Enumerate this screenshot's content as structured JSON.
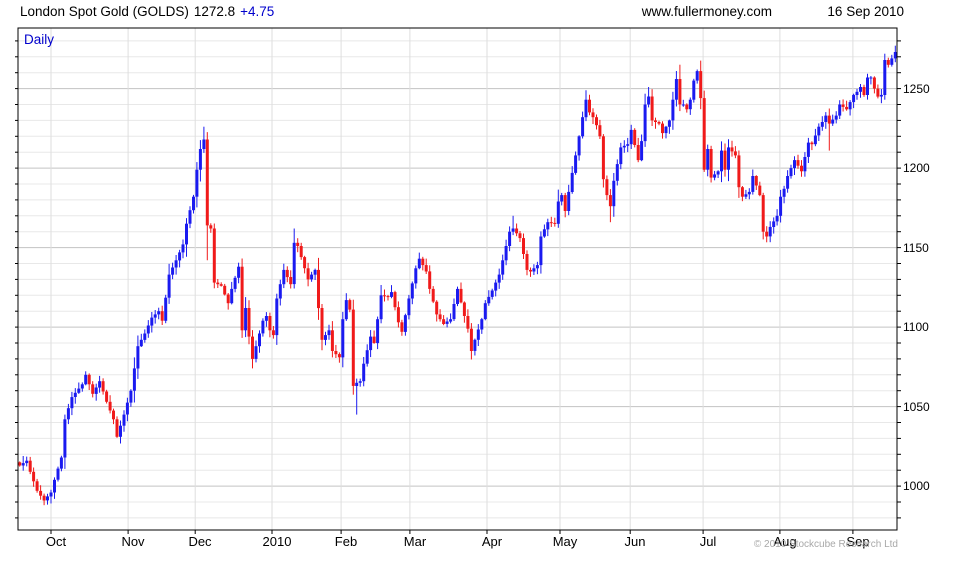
{
  "header": {
    "instrument": "London Spot Gold (GOLDS)",
    "price": "1272.8",
    "change": "+4.75",
    "website": "www.fullermoney.com",
    "date": "16 Sep 2010"
  },
  "chart": {
    "timeframe_label": "Daily",
    "copyright": "© 2010 Stockcube Research Ltd"
  },
  "chart_data": {
    "type": "candlestick",
    "title": "London Spot Gold (GOLDS)",
    "subtitle": "Daily",
    "last_price": 1272.8,
    "change": 4.75,
    "date": "16 Sep 2010",
    "grid": true,
    "legend_position": "none",
    "xlabel": "",
    "ylabel": "",
    "y_axis": {
      "ticks": [
        1000,
        1050,
        1100,
        1150,
        1200,
        1250
      ],
      "minor_step": 10,
      "range": [
        972.4,
        1288.1
      ],
      "side": "right"
    },
    "x_axis": {
      "months": [
        {
          "label": "Oct",
          "day": 9.5
        },
        {
          "label": "Nov",
          "day": 31.7
        },
        {
          "label": "Dec",
          "day": 51.0
        },
        {
          "label": "2010",
          "day": 73.1
        },
        {
          "label": "Feb",
          "day": 93.0
        },
        {
          "label": "Mar",
          "day": 112.8
        },
        {
          "label": "Apr",
          "day": 135.0
        },
        {
          "label": "May",
          "day": 156.0
        },
        {
          "label": "Jun",
          "day": 176.2
        },
        {
          "label": "Jul",
          "day": 197.2
        },
        {
          "label": "Aug",
          "day": 219.3
        },
        {
          "label": "Sep",
          "day": 240.3
        }
      ]
    },
    "series": {
      "name": "London Spot Gold close (estimated from chart)",
      "total_days": 253,
      "render_seed": 7,
      "close_waypoints": [
        [
          0,
          1013
        ],
        [
          2,
          1016
        ],
        [
          3,
          1009
        ],
        [
          5,
          997
        ],
        [
          7,
          991
        ],
        [
          9,
          996
        ],
        [
          10,
          1004
        ],
        [
          12,
          1018
        ],
        [
          13,
          1042
        ],
        [
          15,
          1056
        ],
        [
          18,
          1064
        ],
        [
          19,
          1070
        ],
        [
          21,
          1058
        ],
        [
          23,
          1066
        ],
        [
          25,
          1053
        ],
        [
          27,
          1042
        ],
        [
          28,
          1031
        ],
        [
          30,
          1045
        ],
        [
          32,
          1060
        ],
        [
          34,
          1088
        ],
        [
          36,
          1096
        ],
        [
          38,
          1106
        ],
        [
          40,
          1110
        ],
        [
          41,
          1104
        ],
        [
          43,
          1133
        ],
        [
          45,
          1142
        ],
        [
          47,
          1152
        ],
        [
          48,
          1165
        ],
        [
          50,
          1182
        ],
        [
          51,
          1199
        ],
        [
          52,
          1212
        ],
        [
          53,
          1218
        ],
        [
          54,
          1164
        ],
        [
          55,
          1162
        ],
        [
          56,
          1128
        ],
        [
          58,
          1126
        ],
        [
          60,
          1115
        ],
        [
          61,
          1124
        ],
        [
          63,
          1138
        ],
        [
          64,
          1098
        ],
        [
          65,
          1112
        ],
        [
          66,
          1094
        ],
        [
          67,
          1080
        ],
        [
          68,
          1088
        ],
        [
          70,
          1104
        ],
        [
          71,
          1107
        ],
        [
          72,
          1098
        ],
        [
          73,
          1095
        ],
        [
          74,
          1118
        ],
        [
          76,
          1136
        ],
        [
          78,
          1127
        ],
        [
          79,
          1153
        ],
        [
          80,
          1151
        ],
        [
          82,
          1137
        ],
        [
          83,
          1130
        ],
        [
          85,
          1136
        ],
        [
          86,
          1112
        ],
        [
          87,
          1092
        ],
        [
          89,
          1098
        ],
        [
          90,
          1085
        ],
        [
          92,
          1081
        ],
        [
          93,
          1105
        ],
        [
          94,
          1117
        ],
        [
          95,
          1111
        ],
        [
          96,
          1063
        ],
        [
          97,
          1065
        ],
        [
          98,
          1066
        ],
        [
          99,
          1077
        ],
        [
          101,
          1094
        ],
        [
          102,
          1090
        ],
        [
          104,
          1120
        ],
        [
          106,
          1119
        ],
        [
          107,
          1122
        ],
        [
          109,
          1103
        ],
        [
          110,
          1097
        ],
        [
          112,
          1118
        ],
        [
          114,
          1137
        ],
        [
          115,
          1143
        ],
        [
          117,
          1135
        ],
        [
          118,
          1124
        ],
        [
          120,
          1108
        ],
        [
          122,
          1102
        ],
        [
          124,
          1105
        ],
        [
          126,
          1124
        ],
        [
          128,
          1107
        ],
        [
          129,
          1099
        ],
        [
          130,
          1085
        ],
        [
          131,
          1092
        ],
        [
          133,
          1105
        ],
        [
          134,
          1115
        ],
        [
          136,
          1123
        ],
        [
          138,
          1133
        ],
        [
          140,
          1151
        ],
        [
          141,
          1160
        ],
        [
          142,
          1162
        ],
        [
          144,
          1156
        ],
        [
          146,
          1136
        ],
        [
          147,
          1135
        ],
        [
          149,
          1139
        ],
        [
          150,
          1157
        ],
        [
          152,
          1166
        ],
        [
          154,
          1165
        ],
        [
          155,
          1179
        ],
        [
          156,
          1183
        ],
        [
          157,
          1173
        ],
        [
          159,
          1197
        ],
        [
          160,
          1208
        ],
        [
          162,
          1232
        ],
        [
          163,
          1243
        ],
        [
          164,
          1235
        ],
        [
          165,
          1232
        ],
        [
          166,
          1227
        ],
        [
          167,
          1220
        ],
        [
          168,
          1193
        ],
        [
          169,
          1183
        ],
        [
          170,
          1176
        ],
        [
          171,
          1192
        ],
        [
          173,
          1213
        ],
        [
          175,
          1215
        ],
        [
          176,
          1224
        ],
        [
          178,
          1205
        ],
        [
          179,
          1217
        ],
        [
          180,
          1240
        ],
        [
          181,
          1245
        ],
        [
          182,
          1230
        ],
        [
          184,
          1228
        ],
        [
          185,
          1222
        ],
        [
          187,
          1230
        ],
        [
          189,
          1256
        ],
        [
          190,
          1240
        ],
        [
          191,
          1240
        ],
        [
          192,
          1237
        ],
        [
          193,
          1243
        ],
        [
          194,
          1255
        ],
        [
          195,
          1261
        ],
        [
          196,
          1244
        ],
        [
          197,
          1199
        ],
        [
          198,
          1212
        ],
        [
          199,
          1194
        ],
        [
          201,
          1198
        ],
        [
          202,
          1211
        ],
        [
          203,
          1199
        ],
        [
          204,
          1213
        ],
        [
          206,
          1208
        ],
        [
          207,
          1188
        ],
        [
          208,
          1182
        ],
        [
          210,
          1185
        ],
        [
          211,
          1195
        ],
        [
          212,
          1189
        ],
        [
          213,
          1183
        ],
        [
          214,
          1160
        ],
        [
          215,
          1157
        ],
        [
          216,
          1163
        ],
        [
          218,
          1170
        ],
        [
          219,
          1182
        ],
        [
          220,
          1187
        ],
        [
          221,
          1195
        ],
        [
          223,
          1205
        ],
        [
          225,
          1198
        ],
        [
          227,
          1216
        ],
        [
          228,
          1215
        ],
        [
          230,
          1226
        ],
        [
          231,
          1229
        ],
        [
          232,
          1233
        ],
        [
          233,
          1228
        ],
        [
          235,
          1233
        ],
        [
          236,
          1240
        ],
        [
          238,
          1237
        ],
        [
          240,
          1246
        ],
        [
          241,
          1248
        ],
        [
          242,
          1251
        ],
        [
          243,
          1246
        ],
        [
          244,
          1257
        ],
        [
          245,
          1257
        ],
        [
          246,
          1250
        ],
        [
          247,
          1245
        ],
        [
          248,
          1246
        ],
        [
          249,
          1268
        ],
        [
          250,
          1265
        ],
        [
          251,
          1269
        ],
        [
          252,
          1273
        ]
      ],
      "extremes": [
        [
          7,
          "L",
          988
        ],
        [
          19,
          "H",
          1072
        ],
        [
          53,
          "H",
          1226
        ],
        [
          54,
          "L",
          1142
        ],
        [
          67,
          "L",
          1074
        ],
        [
          79,
          "H",
          1162
        ],
        [
          97,
          "L",
          1045
        ],
        [
          130,
          "L",
          1082
        ],
        [
          142,
          "H",
          1170
        ],
        [
          163,
          "H",
          1249
        ],
        [
          170,
          "L",
          1166
        ],
        [
          181,
          "H",
          1251
        ],
        [
          190,
          "H",
          1265
        ],
        [
          195,
          "H",
          1262
        ],
        [
          215,
          "L",
          1155
        ],
        [
          233,
          "L",
          1211
        ],
        [
          244,
          "H",
          1259
        ],
        [
          252,
          "H",
          1277
        ]
      ]
    },
    "colors": {
      "up_candle": "#1a1af0",
      "down_candle": "#f01a1a",
      "grid_minor": "#e8e8e8",
      "grid_major": "#c3c3c3",
      "grid_month": "#dedede",
      "border": "#000000",
      "accent_blue": "#0000cc",
      "copyright_gray": "#a8a8a8"
    }
  }
}
